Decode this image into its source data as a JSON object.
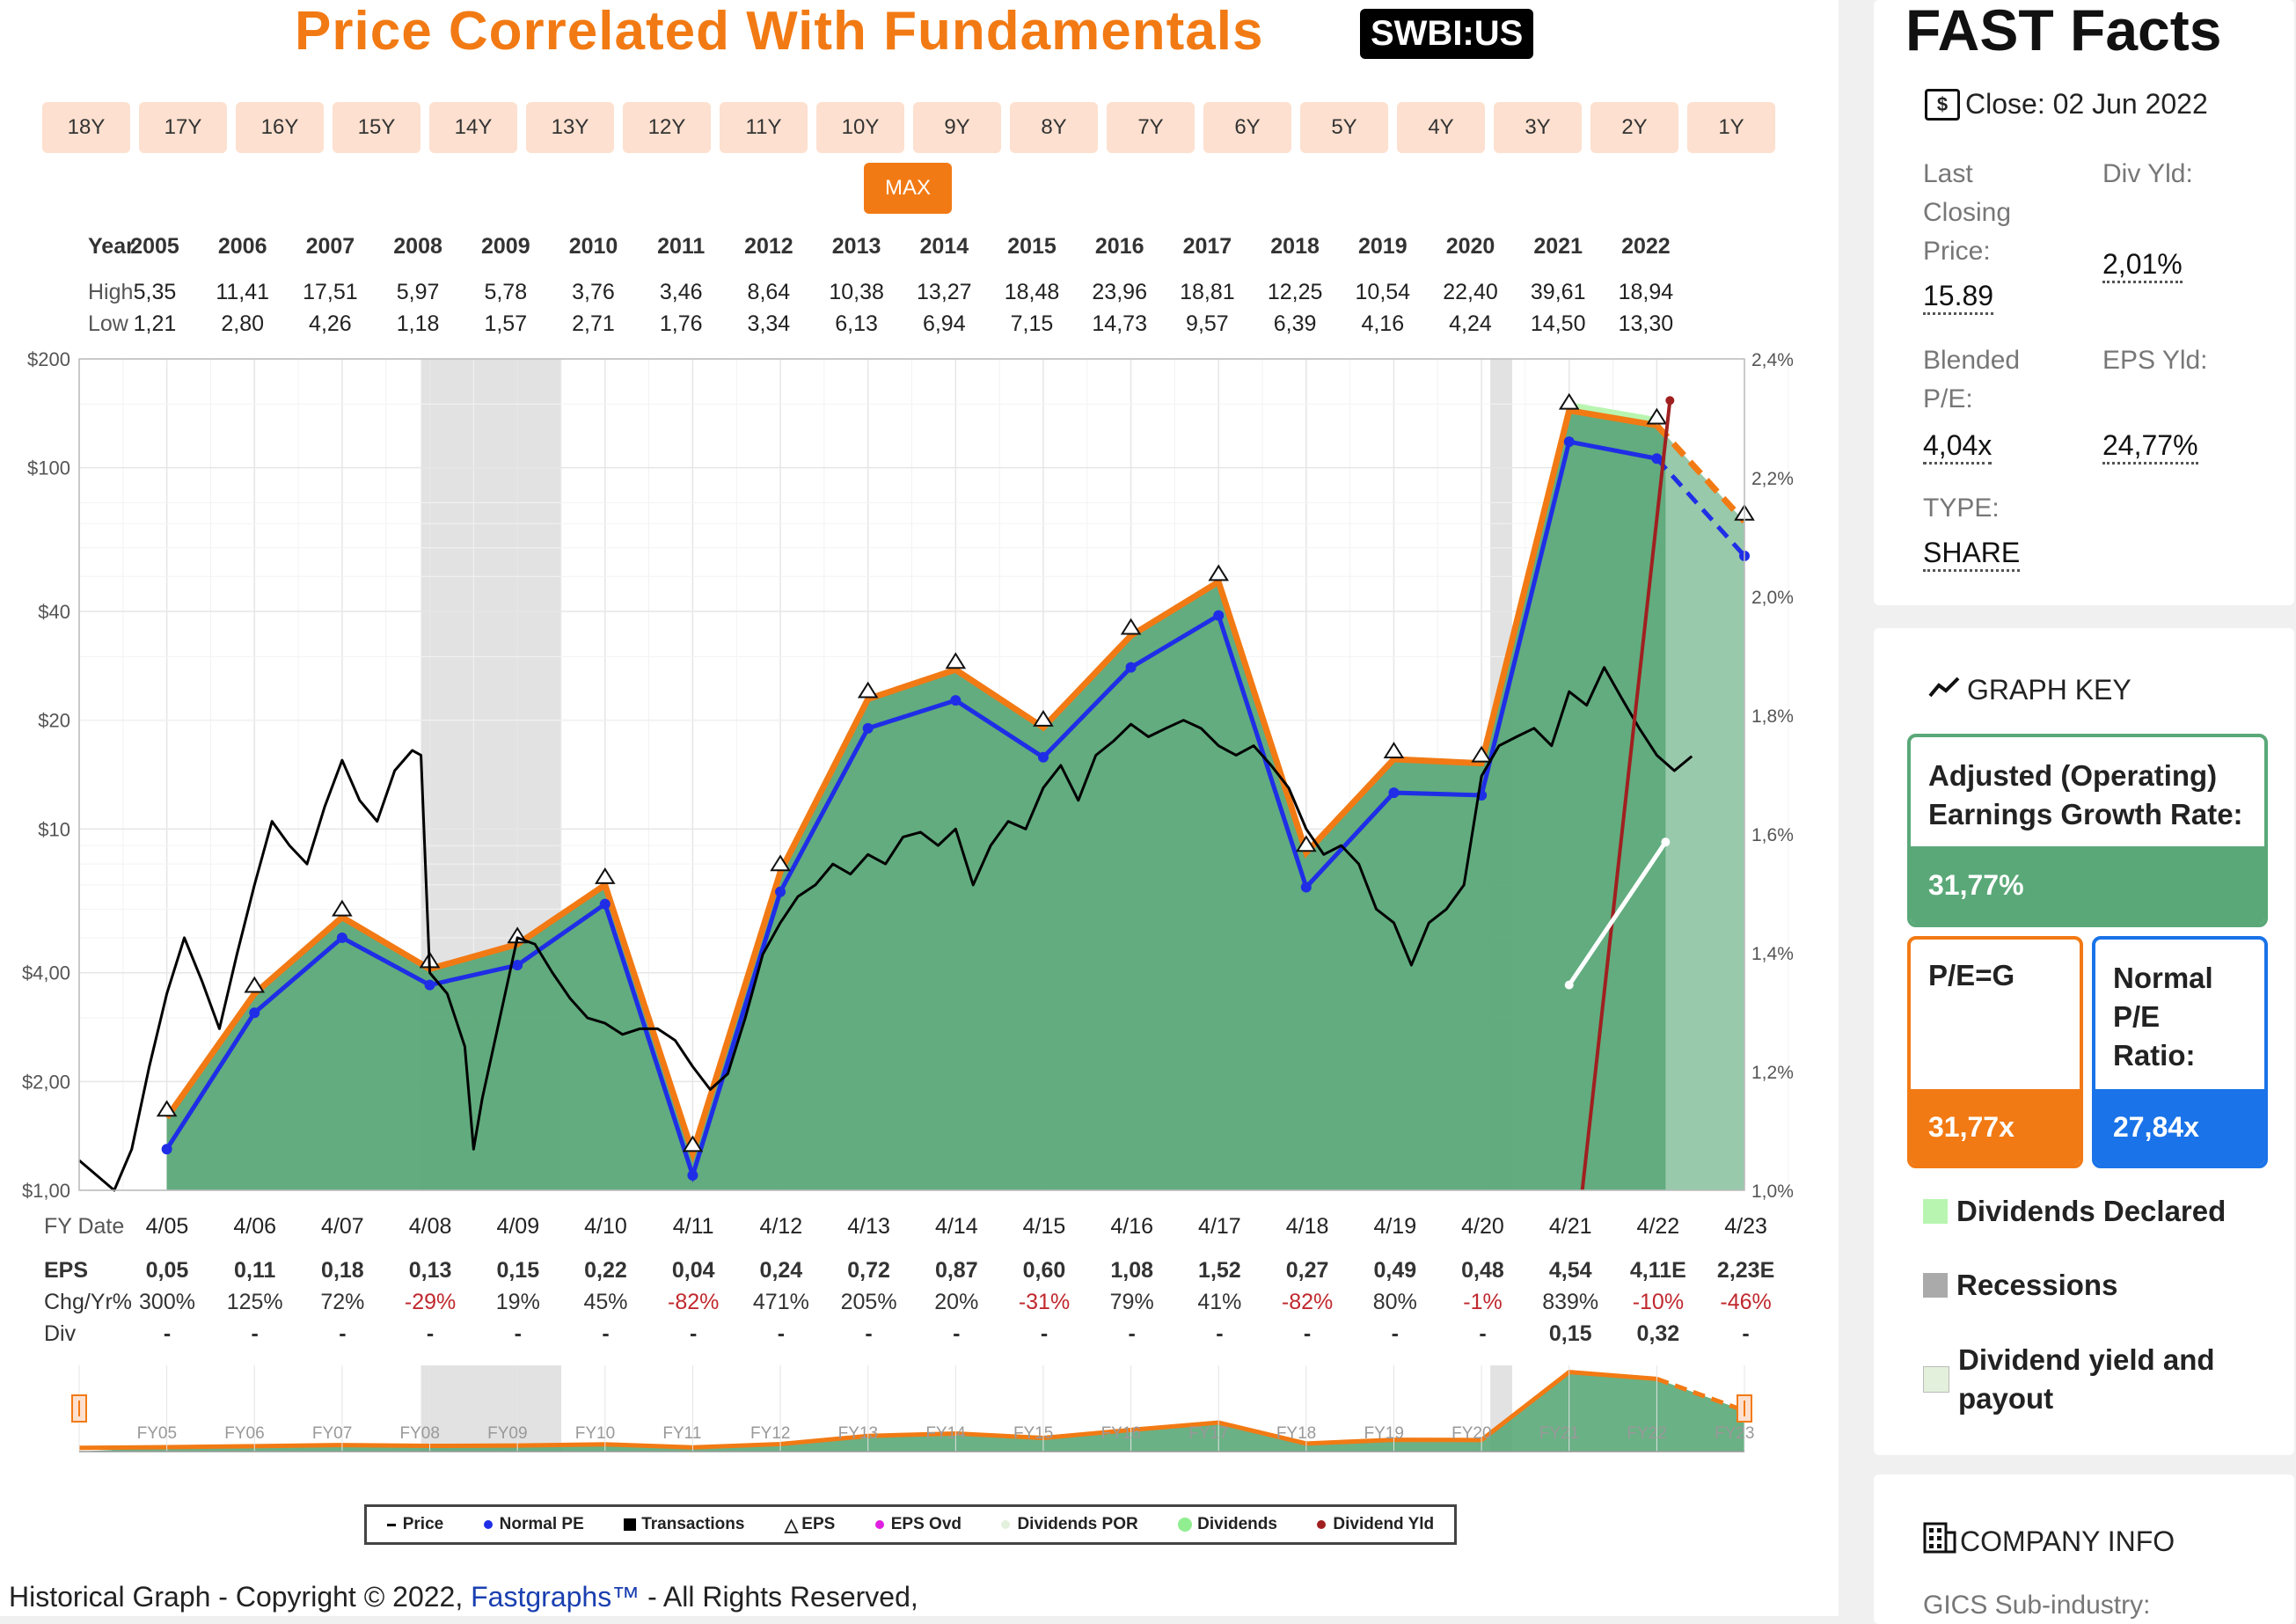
{
  "header": {
    "title": "Price Correlated With Fundamentals",
    "ticker": "SWBI:US"
  },
  "ranges": [
    "18Y",
    "17Y",
    "16Y",
    "15Y",
    "14Y",
    "13Y",
    "12Y",
    "11Y",
    "10Y",
    "9Y",
    "8Y",
    "7Y",
    "6Y",
    "5Y",
    "4Y",
    "3Y",
    "2Y",
    "1Y"
  ],
  "range_active": "MAX",
  "year_table": {
    "year_label": "Year",
    "high_label": "High",
    "low_label": "Low",
    "years": [
      "2005",
      "2006",
      "2007",
      "2008",
      "2009",
      "2010",
      "2011",
      "2012",
      "2013",
      "2014",
      "2015",
      "2016",
      "2017",
      "2018",
      "2019",
      "2020",
      "2021",
      "2022"
    ],
    "high": [
      "5,35",
      "11,41",
      "17,51",
      "5,97",
      "5,78",
      "3,76",
      "3,46",
      "8,64",
      "10,38",
      "13,27",
      "18,48",
      "23,96",
      "18,81",
      "12,25",
      "10,54",
      "22,40",
      "39,61",
      "18,94"
    ],
    "low": [
      "1,21",
      "2,80",
      "4,26",
      "1,18",
      "1,57",
      "2,71",
      "1,76",
      "3,34",
      "6,13",
      "6,94",
      "7,15",
      "14,73",
      "9,57",
      "6,39",
      "4,16",
      "4,24",
      "14,50",
      "13,30"
    ]
  },
  "eps_table": {
    "fy_label": "FY Date",
    "eps_label": "EPS",
    "chg_label": "Chg/Yr%",
    "div_label": "Div",
    "fy": [
      "4/05",
      "4/06",
      "4/07",
      "4/08",
      "4/09",
      "4/10",
      "4/11",
      "4/12",
      "4/13",
      "4/14",
      "4/15",
      "4/16",
      "4/17",
      "4/18",
      "4/19",
      "4/20",
      "4/21",
      "4/22",
      "4/23"
    ],
    "eps": [
      "0,05",
      "0,11",
      "0,18",
      "0,13",
      "0,15",
      "0,22",
      "0,04",
      "0,24",
      "0,72",
      "0,87",
      "0,60",
      "1,08",
      "1,52",
      "0,27",
      "0,49",
      "0,48",
      "4,54",
      "4,11E",
      "2,23E"
    ],
    "chg": [
      "300%",
      "125%",
      "72%",
      "-29%",
      "19%",
      "45%",
      "-82%",
      "471%",
      "205%",
      "20%",
      "-31%",
      "79%",
      "41%",
      "-82%",
      "80%",
      "-1%",
      "839%",
      "-10%",
      "-46%"
    ],
    "div": [
      "-",
      "-",
      "-",
      "-",
      "-",
      "-",
      "-",
      "-",
      "-",
      "-",
      "-",
      "-",
      "-",
      "-",
      "-",
      "-",
      "0,15",
      "0,32",
      "-"
    ]
  },
  "chart_data": {
    "type": "line",
    "title": "Price Correlated With Fundamentals",
    "y_axis_left": {
      "scale": "log",
      "ticks": [
        "$200",
        "$100",
        "$40",
        "$20",
        "$10",
        "$4,00",
        "$2,00",
        "$1,00"
      ],
      "tick_values": [
        200,
        100,
        40,
        20,
        10,
        4,
        2,
        1
      ]
    },
    "y_axis_right": {
      "ticks": [
        "2,4%",
        "2,2%",
        "2,0%",
        "1,8%",
        "1,6%",
        "1,4%",
        "1,2%",
        "1,0%"
      ],
      "tick_values": [
        2.4,
        2.2,
        2.0,
        1.8,
        1.6,
        1.4,
        1.2,
        1.0
      ]
    },
    "x_labels": [
      "4/05",
      "4/06",
      "4/07",
      "4/08",
      "4/09",
      "4/10",
      "4/11",
      "4/12",
      "4/13",
      "4/14",
      "4/15",
      "4/16",
      "4/17",
      "4/18",
      "4/19",
      "4/20",
      "4/21",
      "4/22",
      "4/23"
    ],
    "recessions": [
      [
        2007.9,
        2009.5
      ],
      [
        2020.1,
        2020.35
      ]
    ],
    "series": [
      {
        "name": "Normal PE",
        "color": "#1f2ee6",
        "x": [
          2005,
          2006,
          2007,
          2008,
          2009,
          2010,
          2011,
          2012,
          2013,
          2014,
          2015,
          2016,
          2017,
          2018,
          2019,
          2020,
          2021,
          2022,
          2023
        ],
        "values": [
          1.3,
          3.1,
          5.0,
          3.7,
          4.2,
          6.2,
          1.1,
          6.7,
          19.0,
          22.7,
          15.8,
          28.0,
          39.0,
          6.9,
          12.6,
          12.4,
          118,
          106,
          57
        ]
      },
      {
        "name": "EPS",
        "color": "#f27a14",
        "x": [
          2005,
          2006,
          2007,
          2008,
          2009,
          2010,
          2011,
          2012,
          2013,
          2014,
          2015,
          2016,
          2017,
          2018,
          2019,
          2020,
          2021,
          2022,
          2023
        ],
        "values": [
          1.59,
          3.5,
          5.7,
          4.1,
          4.8,
          7.0,
          1.27,
          7.6,
          22.9,
          27.6,
          19.1,
          34.3,
          48.3,
          8.6,
          15.6,
          15.2,
          144,
          131,
          71
        ]
      },
      {
        "name": "Price",
        "color": "#000000",
        "x": [
          2004.0,
          2004.2,
          2004.4,
          2004.6,
          2004.8,
          2005.0,
          2005.2,
          2005.4,
          2005.6,
          2005.8,
          2006.0,
          2006.2,
          2006.4,
          2006.6,
          2006.8,
          2007.0,
          2007.2,
          2007.4,
          2007.6,
          2007.8,
          2007.9,
          2008.0,
          2008.2,
          2008.4,
          2008.5,
          2008.6,
          2008.8,
          2009.0,
          2009.2,
          2009.4,
          2009.6,
          2009.8,
          2010.0,
          2010.2,
          2010.4,
          2010.6,
          2010.8,
          2011.0,
          2011.2,
          2011.4,
          2011.6,
          2011.8,
          2012.0,
          2012.2,
          2012.4,
          2012.6,
          2012.8,
          2013.0,
          2013.2,
          2013.4,
          2013.6,
          2013.8,
          2014.0,
          2014.2,
          2014.4,
          2014.6,
          2014.8,
          2015.0,
          2015.2,
          2015.4,
          2015.6,
          2015.8,
          2016.0,
          2016.2,
          2016.4,
          2016.6,
          2016.8,
          2017.0,
          2017.2,
          2017.4,
          2017.6,
          2017.8,
          2018.0,
          2018.2,
          2018.4,
          2018.6,
          2018.8,
          2019.0,
          2019.2,
          2019.4,
          2019.6,
          2019.8,
          2020.0,
          2020.2,
          2020.4,
          2020.6,
          2020.8,
          2021.0,
          2021.2,
          2021.4,
          2021.6,
          2021.8,
          2022.0,
          2022.2,
          2022.4
        ],
        "values": [
          1.21,
          1.1,
          1.0,
          1.3,
          2.2,
          3.5,
          5.0,
          3.8,
          2.8,
          4.5,
          7.0,
          10.5,
          9.0,
          8.0,
          11.5,
          15.5,
          12.0,
          10.5,
          14.5,
          16.5,
          16.0,
          4.0,
          3.5,
          2.5,
          1.3,
          1.8,
          3.0,
          5.0,
          4.8,
          4.0,
          3.4,
          3.0,
          2.9,
          2.7,
          2.8,
          2.8,
          2.6,
          2.2,
          1.9,
          2.1,
          3.0,
          4.5,
          5.5,
          6.5,
          7.0,
          8.0,
          7.5,
          8.5,
          8.0,
          9.5,
          9.8,
          9.0,
          10.0,
          7.0,
          9.0,
          10.5,
          10.0,
          13.0,
          15.0,
          12.0,
          16.0,
          17.5,
          19.5,
          18.0,
          19.0,
          20.0,
          19.0,
          17.0,
          16.0,
          17.0,
          15.0,
          13.0,
          10.0,
          8.5,
          9.0,
          8.0,
          6.0,
          5.5,
          4.2,
          5.5,
          6.0,
          7.0,
          14.0,
          17.0,
          18.0,
          19.0,
          17.0,
          24.0,
          22.0,
          28.0,
          23.0,
          19.0,
          16.0,
          14.5,
          15.9
        ]
      },
      {
        "name": "Dividend Yld",
        "color": "#a02020",
        "x": [
          2021.15,
          2022.15
        ],
        "values": [
          1.0,
          2.33
        ]
      }
    ],
    "eps_fit_line": {
      "x": [
        2021.0,
        2022.1
      ],
      "values": [
        3.7,
        9.2
      ]
    },
    "graph_key": {
      "growth_label": "Adjusted (Operating) Earnings Growth Rate:",
      "growth_value": "31,77%",
      "pe_g_label": "P/E=G",
      "pe_g_value": "31,77x",
      "normal_pe_label": "Normal P/E Ratio:",
      "normal_pe_value": "27,84x"
    }
  },
  "legend": [
    "Price",
    "Normal PE",
    "Transactions",
    "EPS",
    "EPS Ovd",
    "Dividends POR",
    "Dividends",
    "Dividend Yld"
  ],
  "mini": {
    "labels": [
      "FY05",
      "FY06",
      "FY07",
      "FY08",
      "FY09",
      "FY10",
      "FY11",
      "FY12",
      "FY13",
      "FY14",
      "FY15",
      "FY16",
      "FY17",
      "FY18",
      "FY19",
      "FY20",
      "FY21",
      "FY22",
      "FY23"
    ]
  },
  "footer": {
    "prefix": "Historical Graph - Copyright © 2022, ",
    "link": "Fastgraphs™",
    "suffix": " - All Rights Reserved,"
  },
  "fast_facts": {
    "title": "FAST Facts",
    "close": "Close: 02 Jun 2022",
    "last_closing_label": "Last Closing Price:",
    "last_closing_value": "15.89",
    "div_yld_label": "Div Yld:",
    "div_yld_value": "2,01%",
    "blended_label": "Blended P/E:",
    "blended_value": "4,04x",
    "eps_yld_label": "EPS Yld:",
    "eps_yld_value": "24,77%",
    "type_label": "TYPE:",
    "type_value": "SHARE"
  },
  "graph_key_panel": {
    "title": "GRAPH KEY",
    "items": [
      "Dividends Declared",
      "Recessions",
      "Dividend yield and payout"
    ]
  },
  "company_info": {
    "title": "COMPANY INFO",
    "gics_label": "GICS Sub-industry:"
  },
  "colors": {
    "accent": "#f27a14",
    "eps_fill": "#5aa878",
    "normal_pe": "#1f2ee6",
    "key_green": "#5aa878",
    "key_blue": "#1a73e8"
  }
}
